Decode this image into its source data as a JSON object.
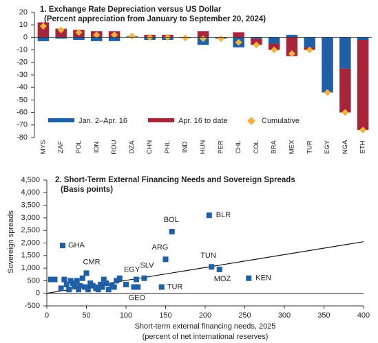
{
  "chart_data": [
    {
      "type": "bar",
      "title": "1. Exchange Rate Depreciation versus US Dollar",
      "subtitle": "(Percent appreciation from January to September 20, 2024)",
      "categories": [
        "MYS",
        "ZAF",
        "POL",
        "IDN",
        "ROU",
        "DZA",
        "CHN",
        "PHL",
        "IND",
        "HUN",
        "PER",
        "CHL",
        "COL",
        "BRA",
        "MEX",
        "TUR",
        "EGY",
        "NGA",
        "ETH"
      ],
      "series": [
        {
          "name": "Jan. 2–Apr. 16",
          "color": "#1f5fa8",
          "values": [
            -3,
            -1,
            -2,
            -3,
            -3,
            1,
            -2,
            -2,
            -0.5,
            -6,
            -1,
            -8,
            -1,
            -5,
            2,
            -8,
            -44,
            -25,
            -2
          ]
        },
        {
          "name": "Apr. 16 to date",
          "color": "#a8243a",
          "values": [
            12,
            7,
            6,
            5,
            5,
            0,
            2,
            2,
            0,
            5,
            0,
            4,
            -5,
            -5,
            -15,
            -2,
            0,
            -35,
            -72
          ]
        }
      ],
      "cumulative": {
        "name": "Cumulative",
        "color": "#f2b43c",
        "values": [
          9,
          6,
          4,
          2,
          2,
          1,
          0,
          0,
          -0.5,
          -1,
          -1,
          -4,
          -6,
          -10,
          -13,
          -10,
          -44,
          -60,
          -74
        ]
      },
      "ylim": [
        -80,
        20
      ],
      "yticks": [
        -80,
        -70,
        -60,
        -50,
        -40,
        -30,
        -20,
        -10,
        0,
        10,
        20
      ]
    },
    {
      "type": "scatter",
      "title": "2. Short-Term External Financing Needs and Sovereign Spreads",
      "subtitle": "(Basis points)",
      "xlabel": "Short-term external financing needs, 2025",
      "xlabel2": "(percent of net international reserves)",
      "ylabel": "Sovereign spreads",
      "color": "#1f5fa8",
      "x": [
        205,
        158,
        20,
        150,
        208,
        218,
        255,
        50,
        113,
        123,
        145,
        110,
        5,
        10,
        18,
        22,
        25,
        28,
        30,
        33,
        35,
        38,
        40,
        42,
        45,
        48,
        52,
        55,
        58,
        62,
        65,
        68,
        70,
        72,
        75,
        78,
        82,
        85,
        88,
        92,
        100,
        115
      ],
      "y": [
        3100,
        2450,
        1900,
        1350,
        1050,
        950,
        600,
        800,
        550,
        600,
        250,
        250,
        550,
        550,
        200,
        550,
        350,
        150,
        500,
        400,
        300,
        500,
        150,
        300,
        600,
        250,
        150,
        400,
        300,
        200,
        150,
        350,
        250,
        550,
        400,
        150,
        300,
        250,
        500,
        600,
        350,
        250
      ],
      "labels": [
        "BLR",
        "BOL",
        "GHA",
        "ARG",
        "TUN",
        "MOZ",
        "KEN",
        "CMR",
        "EGY",
        "SLV",
        "TUR",
        "GEO",
        null,
        null,
        null,
        null,
        null,
        null,
        null,
        null,
        null,
        null,
        null,
        null,
        null,
        null,
        null,
        null,
        null,
        null,
        null,
        null,
        null,
        null,
        null,
        null,
        null,
        null,
        null,
        null,
        null,
        null
      ],
      "trendline": {
        "x": [
          0,
          400
        ],
        "y": [
          0,
          2050
        ]
      },
      "xlim": [
        0,
        400
      ],
      "xticks": [
        0,
        50,
        100,
        150,
        200,
        250,
        300,
        350,
        400
      ],
      "ylim": [
        -500,
        4500
      ],
      "yticks": [
        -500,
        0,
        500,
        {
          "value": 1000,
          "label": "1,000"
        },
        {
          "value": 1500,
          "label": "1,500"
        },
        {
          "value": 2000,
          "label": "2,000"
        },
        {
          "value": 2500,
          "label": "2,500"
        },
        {
          "value": 3000,
          "label": "3,000"
        },
        {
          "value": 3500,
          "label": "3,500"
        },
        {
          "value": 4000,
          "label": "4,000"
        },
        {
          "value": 4500,
          "label": "4,500"
        }
      ]
    }
  ]
}
